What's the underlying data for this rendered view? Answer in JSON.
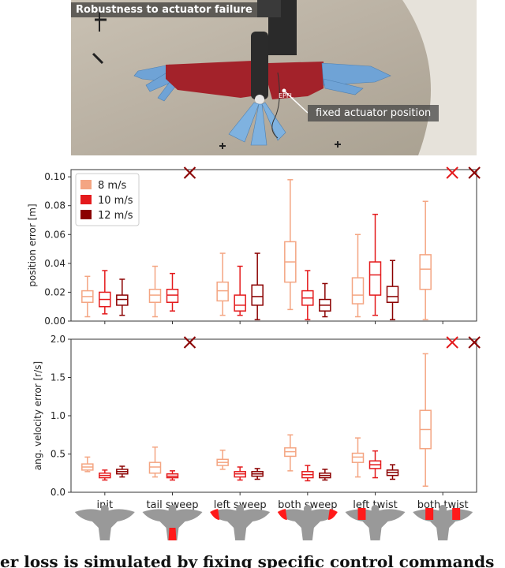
{
  "photo": {
    "title": "Robustness to actuator failure",
    "callout": "fixed actuator position",
    "wing_text": "EPFL",
    "colors": {
      "wing_red": "#a3222a",
      "feather_blue": "#6fa3d6",
      "background": "#bdb5a8"
    }
  },
  "chart_data": [
    {
      "type": "boxplot",
      "ylabel": "position error [m]",
      "ylim": [
        0,
        0.105
      ],
      "yticks": [
        "0.00",
        "0.02",
        "0.04",
        "0.06",
        "0.08",
        "0.10"
      ],
      "categories": [
        "init",
        "tail sweep",
        "left sweep",
        "both sweep",
        "left twist",
        "both twist"
      ],
      "legend": {
        "placement": "top-left",
        "entries": [
          "8 m/s",
          "10 m/s",
          "12 m/s"
        ]
      },
      "series": [
        {
          "name": "8 m/s",
          "color": "#f4a582",
          "boxes": [
            {
              "min": 0.003,
              "q1": 0.013,
              "median": 0.017,
              "q3": 0.021,
              "max": 0.031
            },
            {
              "min": 0.003,
              "q1": 0.013,
              "median": 0.018,
              "q3": 0.022,
              "max": 0.038
            },
            {
              "min": 0.004,
              "q1": 0.014,
              "median": 0.021,
              "q3": 0.027,
              "max": 0.047
            },
            {
              "min": 0.008,
              "q1": 0.027,
              "median": 0.041,
              "q3": 0.055,
              "max": 0.098
            },
            {
              "min": 0.003,
              "q1": 0.012,
              "median": 0.018,
              "q3": 0.03,
              "max": 0.06
            },
            {
              "min": 0.001,
              "q1": 0.022,
              "median": 0.036,
              "q3": 0.046,
              "max": 0.083
            }
          ]
        },
        {
          "name": "10 m/s",
          "color": "#e41a1c",
          "boxes": [
            {
              "min": 0.005,
              "q1": 0.01,
              "median": 0.015,
              "q3": 0.02,
              "max": 0.035
            },
            {
              "min": 0.007,
              "q1": 0.013,
              "median": 0.018,
              "q3": 0.022,
              "max": 0.033
            },
            {
              "min": 0.004,
              "q1": 0.007,
              "median": 0.011,
              "q3": 0.018,
              "max": 0.038
            },
            {
              "min": 0.001,
              "q1": 0.011,
              "median": 0.016,
              "q3": 0.021,
              "max": 0.035
            },
            {
              "min": 0.004,
              "q1": 0.018,
              "median": 0.032,
              "q3": 0.041,
              "max": 0.074
            },
            null
          ]
        },
        {
          "name": "12 m/s",
          "color": "#8b0000",
          "boxes": [
            {
              "min": 0.004,
              "q1": 0.011,
              "median": 0.015,
              "q3": 0.018,
              "max": 0.029
            },
            null,
            {
              "min": 0.001,
              "q1": 0.011,
              "median": 0.017,
              "q3": 0.025,
              "max": 0.047
            },
            {
              "min": 0.003,
              "q1": 0.007,
              "median": 0.011,
              "q3": 0.015,
              "max": 0.026
            },
            {
              "min": 0.001,
              "q1": 0.013,
              "median": 0.017,
              "q3": 0.024,
              "max": 0.042
            },
            null
          ]
        }
      ],
      "failures": [
        {
          "category": "tail sweep",
          "series": "12 m/s"
        },
        {
          "category": "both twist",
          "series": "10 m/s"
        },
        {
          "category": "both twist",
          "series": "12 m/s"
        }
      ]
    },
    {
      "type": "boxplot",
      "ylabel": "ang. velocity error [r/s]",
      "ylim": [
        0,
        2.0
      ],
      "yticks": [
        "0.0",
        "0.5",
        "1.0",
        "1.5",
        "2.0"
      ],
      "categories": [
        "init",
        "tail sweep",
        "left sweep",
        "both sweep",
        "left twist",
        "both twist"
      ],
      "series": [
        {
          "name": "8 m/s",
          "color": "#f4a582",
          "boxes": [
            {
              "min": 0.27,
              "q1": 0.29,
              "median": 0.33,
              "q3": 0.37,
              "max": 0.46
            },
            {
              "min": 0.2,
              "q1": 0.25,
              "median": 0.33,
              "q3": 0.39,
              "max": 0.59
            },
            {
              "min": 0.3,
              "q1": 0.35,
              "median": 0.39,
              "q3": 0.43,
              "max": 0.55
            },
            {
              "min": 0.28,
              "q1": 0.47,
              "median": 0.53,
              "q3": 0.58,
              "max": 0.75
            },
            {
              "min": 0.2,
              "q1": 0.39,
              "median": 0.46,
              "q3": 0.51,
              "max": 0.71
            },
            {
              "min": 0.08,
              "q1": 0.57,
              "median": 0.82,
              "q3": 1.07,
              "max": 1.81
            }
          ]
        },
        {
          "name": "10 m/s",
          "color": "#e41a1c",
          "boxes": [
            {
              "min": 0.16,
              "q1": 0.19,
              "median": 0.22,
              "q3": 0.25,
              "max": 0.29
            },
            {
              "min": 0.16,
              "q1": 0.19,
              "median": 0.21,
              "q3": 0.24,
              "max": 0.28
            },
            {
              "min": 0.16,
              "q1": 0.2,
              "median": 0.24,
              "q3": 0.27,
              "max": 0.33
            },
            {
              "min": 0.15,
              "q1": 0.19,
              "median": 0.23,
              "q3": 0.27,
              "max": 0.35
            },
            {
              "min": 0.19,
              "q1": 0.31,
              "median": 0.36,
              "q3": 0.41,
              "max": 0.54
            },
            null
          ]
        },
        {
          "name": "12 m/s",
          "color": "#8b0000",
          "boxes": [
            {
              "min": 0.2,
              "q1": 0.24,
              "median": 0.27,
              "q3": 0.3,
              "max": 0.34
            },
            null,
            {
              "min": 0.17,
              "q1": 0.21,
              "median": 0.24,
              "q3": 0.27,
              "max": 0.31
            },
            {
              "min": 0.16,
              "q1": 0.19,
              "median": 0.22,
              "q3": 0.25,
              "max": 0.3
            },
            {
              "min": 0.17,
              "q1": 0.22,
              "median": 0.26,
              "q3": 0.29,
              "max": 0.36
            },
            null
          ]
        }
      ],
      "failures": [
        {
          "category": "tail sweep",
          "series": "12 m/s"
        },
        {
          "category": "both twist",
          "series": "10 m/s"
        },
        {
          "category": "both twist",
          "series": "12 m/s"
        }
      ]
    }
  ],
  "bird_icons": {
    "categories": [
      "init",
      "tail sweep",
      "left sweep",
      "both sweep",
      "left twist",
      "both twist"
    ],
    "colors": {
      "body": "#999999",
      "highlight": "#ff1a1a"
    }
  },
  "caption_fragment": "er loss is simulated by fixing specific control commands"
}
